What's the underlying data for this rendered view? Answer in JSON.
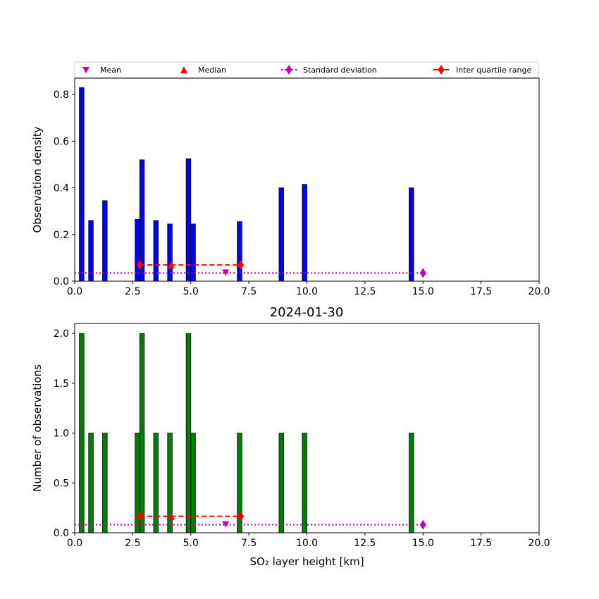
{
  "title": "2024-01-30",
  "legend": {
    "entries": [
      {
        "label": "Mean",
        "color": "#bf00bf",
        "marker": "triangle-down"
      },
      {
        "label": "Median",
        "color": "#ff0000",
        "marker": "triangle-up"
      },
      {
        "label": "Standard deviation",
        "color": "#bf00bf",
        "marker": "diamond",
        "line": "dotted"
      },
      {
        "label": "Inter quartile range",
        "color": "#ff0000",
        "marker": "diamond",
        "line": "solid"
      }
    ],
    "placement": "above top panel"
  },
  "colors": {
    "density_bars": "#0000ff",
    "count_bars": "#008000",
    "stats_magenta": "#bf00bf",
    "stats_red": "#ff0000"
  },
  "chart_data": [
    {
      "type": "bar",
      "ylabel": "Observation density",
      "xlabel": "",
      "xlim": [
        0,
        20
      ],
      "ylim": [
        0,
        0.87
      ],
      "xticks": [
        "0.0",
        "2.5",
        "5.0",
        "7.5",
        "10.0",
        "12.5",
        "15.0",
        "17.5",
        "20.0"
      ],
      "yticks": [
        "0.0",
        "0.2",
        "0.4",
        "0.6",
        "0.8"
      ],
      "bar_color": "#0000ff",
      "bar_width_km": 0.2,
      "x": [
        0.3,
        0.7,
        1.3,
        2.7,
        2.9,
        3.5,
        4.1,
        4.9,
        5.1,
        7.1,
        8.9,
        9.9,
        14.5
      ],
      "values": [
        0.83,
        0.26,
        0.345,
        0.265,
        0.52,
        0.26,
        0.245,
        0.525,
        0.245,
        0.255,
        0.4,
        0.415,
        0.4
      ],
      "stats": {
        "mean": 6.5,
        "median": 4.15,
        "std_range": [
          0,
          15.0
        ],
        "iqr": [
          2.8,
          7.15
        ],
        "stats_y": 0.07,
        "std_y": 0.035
      }
    },
    {
      "type": "bar",
      "ylabel": "Number of observations",
      "xlabel": "SO₂ layer height [km]",
      "xlim": [
        0,
        20
      ],
      "ylim": [
        0,
        2.1
      ],
      "xticks": [
        "0.0",
        "2.5",
        "5.0",
        "7.5",
        "10.0",
        "12.5",
        "15.0",
        "17.5",
        "20.0"
      ],
      "yticks": [
        "0.0",
        "0.5",
        "1.0",
        "1.5",
        "2.0"
      ],
      "bar_color": "#008000",
      "bar_width_km": 0.2,
      "x": [
        0.3,
        0.7,
        1.3,
        2.7,
        2.9,
        3.5,
        4.1,
        4.9,
        5.1,
        7.1,
        8.9,
        9.9,
        14.5
      ],
      "values": [
        2,
        1,
        1,
        1,
        2,
        1,
        1,
        2,
        1,
        1,
        1,
        1,
        1
      ],
      "stats": {
        "mean": 6.5,
        "median": 4.15,
        "std_range": [
          0,
          15.0
        ],
        "iqr": [
          2.8,
          7.15
        ],
        "stats_y": 0.165,
        "std_y": 0.08
      }
    }
  ]
}
